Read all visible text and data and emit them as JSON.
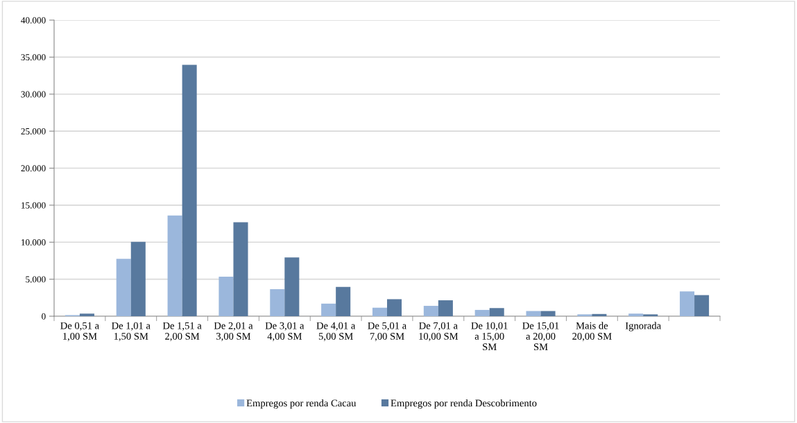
{
  "chart_data": {
    "type": "bar",
    "categories": [
      "De 0,51 a\n1,00 SM",
      "De 1,01 a\n1,50 SM",
      "De 1,51 a\n2,00 SM",
      "De 2,01 a\n3,00 SM",
      "De 3,01 a\n4,00 SM",
      "De 4,01 a\n5,00 SM",
      "De 5,01 a\n7,00 SM",
      "De 7,01 a\n10,00 SM",
      "De 10,01\na 15,00\nSM",
      "De 15,01\na 20,00\nSM",
      "Mais de\n20,00 SM",
      "Ignorada",
      null
    ],
    "series": [
      {
        "name": "Empregos por renda Cacau",
        "color": "#9bb7dc",
        "values": [
          150,
          7750,
          13600,
          5350,
          3650,
          1700,
          1150,
          1400,
          850,
          700,
          250,
          350,
          3350
        ]
      },
      {
        "name": "Empregos por renda Descobrimento",
        "color": "#58799e",
        "values": [
          350,
          10050,
          33950,
          12700,
          7950,
          3950,
          2300,
          2150,
          1100,
          700,
          300,
          250,
          2850
        ]
      }
    ],
    "ylim": [
      0,
      40000
    ],
    "yticks": [
      {
        "value": 0,
        "label": "0"
      },
      {
        "value": 5000,
        "label": "5.000"
      },
      {
        "value": 10000,
        "label": "10.000"
      },
      {
        "value": 15000,
        "label": "15.000"
      },
      {
        "value": 20000,
        "label": "20.000"
      },
      {
        "value": 25000,
        "label": "25.000"
      },
      {
        "value": 30000,
        "label": "30.000"
      },
      {
        "value": 35000,
        "label": "35.000"
      },
      {
        "value": 40000,
        "label": "40.000"
      }
    ],
    "grid": "y",
    "legend": "bottom"
  }
}
